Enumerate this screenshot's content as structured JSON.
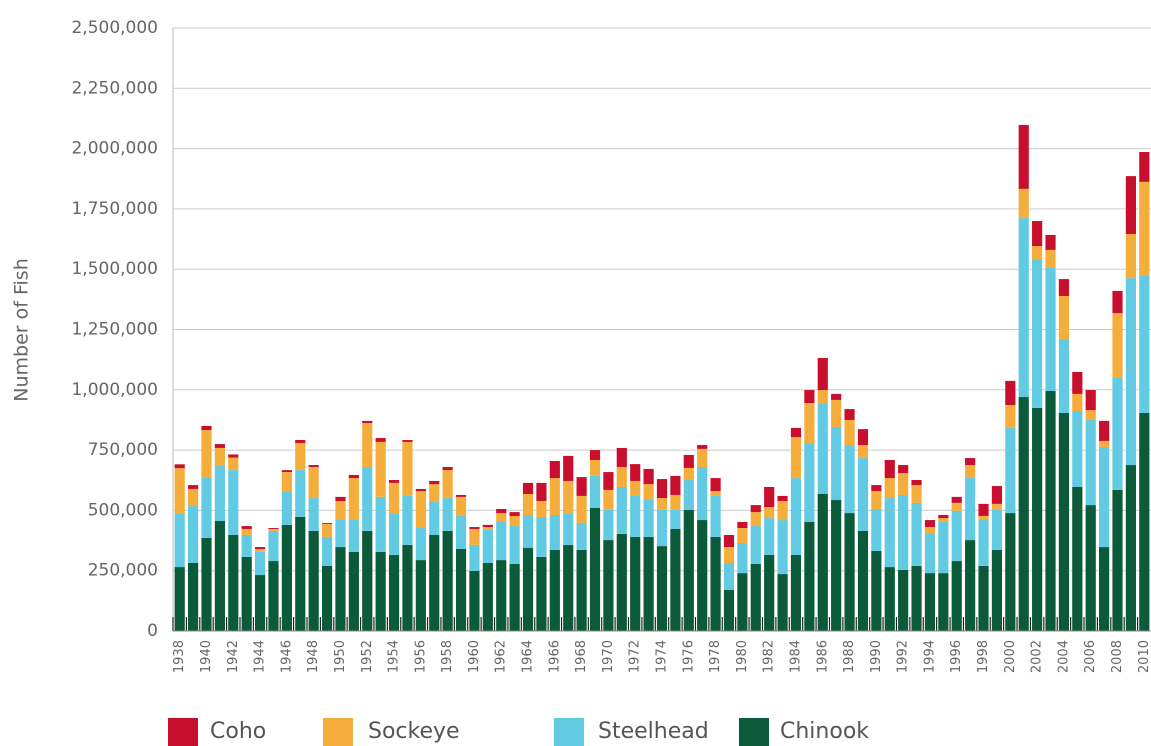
{
  "chart_data": {
    "type": "stacked-bar",
    "y_label": "Number of Fish",
    "categories": [
      "1938",
      null,
      "1940",
      null,
      "1942",
      null,
      "1944",
      null,
      "1946",
      null,
      "1948",
      null,
      "1950",
      null,
      "1952",
      null,
      "1954",
      null,
      "1956",
      null,
      "1958",
      null,
      "1960",
      null,
      "1962",
      null,
      "1964",
      null,
      "1966",
      null,
      "1968",
      null,
      "1970",
      null,
      "1972",
      null,
      "1974",
      null,
      "1976",
      null,
      "1978",
      null,
      "1980",
      null,
      "1982",
      null,
      "1984",
      null,
      "1986",
      null,
      "1988",
      null,
      "1990",
      null,
      "1992",
      null,
      "1994",
      null,
      "1996",
      null,
      "1998",
      null,
      "2000",
      null,
      "2002",
      null,
      "2004",
      null,
      "2006",
      null,
      "2008",
      null,
      "2010"
    ],
    "series": [
      {
        "name": "Chinook",
        "color": "#0b5a3a",
        "values": [
          265000,
          282000,
          386000,
          456000,
          398000,
          307000,
          232000,
          290000,
          440000,
          473000,
          415000,
          270000,
          348000,
          328000,
          415000,
          328000,
          315000,
          357000,
          294000,
          398000,
          415000,
          340000,
          249000,
          282000,
          294000,
          278000,
          344000,
          307000,
          336000,
          357000,
          336000,
          510000,
          377000,
          402000,
          390000,
          390000,
          352000,
          423000,
          502000,
          460000,
          390000,
          170000,
          240000,
          278000,
          315000,
          236000,
          315000,
          452000,
          568000,
          543000,
          489000,
          415000,
          332000,
          265000,
          253000,
          270000,
          240000,
          240000,
          290000,
          377000,
          270000,
          336000,
          489000,
          970000,
          925000,
          995000,
          904000,
          597000,
          522000,
          348000,
          585000,
          688000,
          904000
        ]
      },
      {
        "name": "Steelhead",
        "color": "#62cbe3",
        "values": [
          220000,
          236000,
          252000,
          232000,
          269000,
          91000,
          96000,
          125000,
          140000,
          194000,
          136000,
          120000,
          116000,
          136000,
          265000,
          228000,
          174000,
          203000,
          133000,
          137000,
          136000,
          137000,
          108000,
          137000,
          158000,
          157000,
          137000,
          166000,
          145000,
          128000,
          112000,
          133000,
          125000,
          195000,
          170000,
          157000,
          150000,
          79000,
          124000,
          220000,
          170000,
          112000,
          125000,
          157000,
          153000,
          224000,
          319000,
          327000,
          377000,
          303000,
          282000,
          302000,
          174000,
          286000,
          311000,
          261000,
          166000,
          212000,
          208000,
          261000,
          190000,
          166000,
          353000,
          742000,
          617000,
          510000,
          307000,
          315000,
          353000,
          415000,
          464000,
          775000,
          568000
        ]
      },
      {
        "name": "Sockeye",
        "color": "#f5ae3c",
        "values": [
          190000,
          71000,
          195000,
          71000,
          52000,
          25000,
          12000,
          8000,
          79000,
          112000,
          129000,
          54000,
          75000,
          170000,
          182000,
          228000,
          125000,
          224000,
          153000,
          74000,
          116000,
          79000,
          66000,
          12000,
          37000,
          42000,
          87000,
          66000,
          153000,
          137000,
          112000,
          66000,
          83000,
          83000,
          62000,
          62000,
          49000,
          62000,
          50000,
          75000,
          20000,
          66000,
          62000,
          58000,
          46000,
          79000,
          170000,
          166000,
          54000,
          112000,
          104000,
          54000,
          74000,
          83000,
          91000,
          74000,
          25000,
          16000,
          33000,
          50000,
          17000,
          25000,
          95000,
          121000,
          54000,
          75000,
          178000,
          71000,
          41000,
          25000,
          269000,
          183000,
          390000
        ]
      },
      {
        "name": "Coho",
        "color": "#c8102e",
        "values": [
          16000,
          16000,
          17000,
          16000,
          13000,
          12000,
          8000,
          4000,
          8000,
          13000,
          8000,
          4000,
          17000,
          13000,
          9000,
          16000,
          12000,
          8000,
          9000,
          13000,
          13000,
          8000,
          8000,
          9000,
          17000,
          16000,
          46000,
          75000,
          71000,
          104000,
          78000,
          41000,
          74000,
          79000,
          70000,
          63000,
          79000,
          79000,
          54000,
          16000,
          54000,
          50000,
          25000,
          29000,
          83000,
          21000,
          38000,
          54000,
          133000,
          25000,
          45000,
          66000,
          25000,
          75000,
          33000,
          21000,
          29000,
          13000,
          25000,
          29000,
          50000,
          74000,
          100000,
          265000,
          104000,
          62000,
          70000,
          91000,
          83000,
          83000,
          92000,
          240000,
          124000
        ]
      }
    ],
    "ylim": [
      0,
      2500000
    ],
    "yticks": [
      0,
      {
        "value": 250000,
        "label": "250,000"
      },
      {
        "value": 500000,
        "label": "500,000"
      },
      {
        "value": 750000,
        "label": "750,000"
      },
      {
        "value": 1000000,
        "label": "1,000,000"
      },
      {
        "value": 1250000,
        "label": "1,250,000"
      },
      {
        "value": 1500000,
        "label": "1,500,000"
      },
      {
        "value": 1750000,
        "label": "1,750,000"
      },
      {
        "value": 2000000,
        "label": "2,000,000"
      },
      {
        "value": 2250000,
        "label": "2,250,000"
      },
      {
        "value": 2500000,
        "label": "2,500,000"
      }
    ],
    "grid": true,
    "legend": "bottom"
  }
}
